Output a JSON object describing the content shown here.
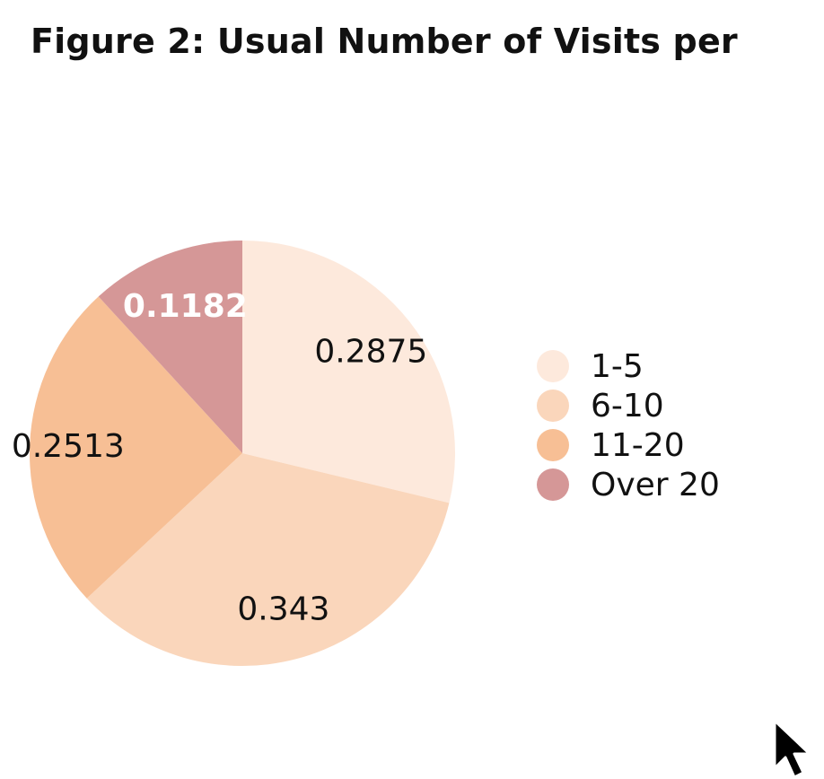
{
  "chart_data": {
    "type": "pie",
    "title": "Figure 2: Usual Number of Visits per",
    "categories": [
      "1-5",
      "6-10",
      "11-20",
      "Over 20"
    ],
    "values": [
      0.2875,
      0.343,
      0.2513,
      0.1182
    ],
    "data_labels": [
      "0.2875",
      "0.343",
      "0.2513",
      "0.1182"
    ],
    "colors": [
      "#fde9dc",
      "#fad6bb",
      "#f7bf95",
      "#d59797"
    ],
    "label_colors": [
      "#111111",
      "#111111",
      "#111111",
      "#ffffff"
    ],
    "start_angle": "12 o'clock",
    "direction": "clockwise",
    "legend_placement": "right"
  },
  "cursor": {
    "icon": "mouse-pointer-icon"
  }
}
